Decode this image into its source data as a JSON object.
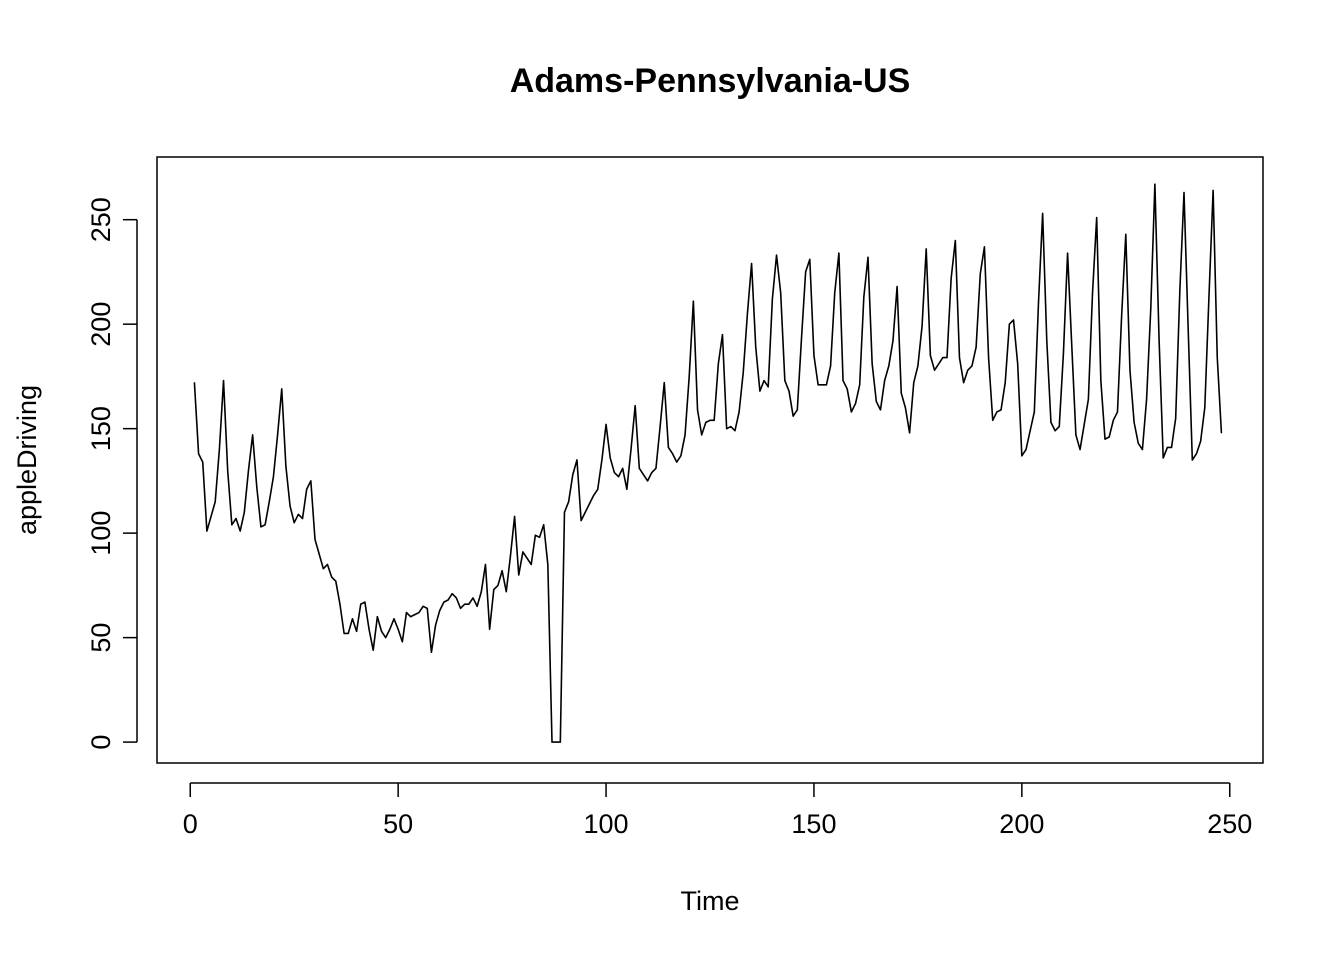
{
  "chart_data": {
    "type": "line",
    "title": "Adams-Pennsylvania-US",
    "xlabel": "Time",
    "ylabel": "appleDriving",
    "xlim": [
      -8,
      258
    ],
    "ylim": [
      -10,
      280
    ],
    "x_ticks": [
      0,
      50,
      100,
      150,
      200,
      250
    ],
    "y_ticks": [
      0,
      50,
      100,
      150,
      200,
      250
    ],
    "x_tick_labels": [
      "0",
      "50",
      "100",
      "150",
      "200",
      "250"
    ],
    "y_tick_labels": [
      "0",
      "50",
      "100",
      "150",
      "200",
      "250"
    ],
    "grid": false,
    "legend": "none",
    "line_color": "#000000",
    "series": [
      {
        "x_start": 1,
        "x_step": 1,
        "values": [
          172,
          138,
          134,
          101,
          108,
          115,
          140,
          173,
          130,
          104,
          107,
          101,
          110,
          130,
          147,
          122,
          103,
          104,
          115,
          127,
          147,
          169,
          132,
          113,
          105,
          109,
          107,
          121,
          125,
          97,
          90,
          83,
          85,
          79,
          77,
          66,
          52,
          52,
          59,
          53,
          66,
          67,
          54,
          44,
          60,
          53,
          50,
          54,
          59,
          54,
          48,
          62,
          60,
          61,
          62,
          65,
          64,
          43,
          56,
          63,
          67,
          68,
          71,
          69,
          64,
          66,
          66,
          69,
          65,
          72,
          85,
          54,
          73,
          75,
          82,
          72,
          89,
          108,
          80,
          91,
          88,
          85,
          99,
          98,
          104,
          85,
          0,
          0,
          0,
          110,
          115,
          128,
          135,
          106,
          110,
          114,
          118,
          121,
          135,
          152,
          136,
          129,
          127,
          131,
          121,
          140,
          161,
          131,
          128,
          125,
          129,
          131,
          151,
          172,
          141,
          138,
          134,
          137,
          147,
          175,
          211,
          159,
          147,
          153,
          154,
          154,
          181,
          195,
          150,
          151,
          149,
          158,
          177,
          205,
          229,
          189,
          168,
          173,
          170,
          212,
          233,
          215,
          173,
          168,
          156,
          159,
          193,
          225,
          231,
          185,
          171,
          171,
          171,
          180,
          215,
          234,
          173,
          169,
          158,
          162,
          171,
          213,
          232,
          181,
          163,
          159,
          173,
          180,
          192,
          218,
          167,
          160,
          148,
          172,
          180,
          199,
          236,
          185,
          178,
          181,
          184,
          184,
          222,
          240,
          184,
          172,
          178,
          180,
          189,
          224,
          237,
          184,
          154,
          158,
          159,
          172,
          200,
          202,
          181,
          137,
          140,
          149,
          158,
          210,
          253,
          192,
          153,
          149,
          151,
          186,
          234,
          190,
          147,
          140,
          152,
          164,
          215,
          251,
          173,
          145,
          146,
          154,
          158,
          204,
          243,
          178,
          153,
          143,
          140,
          164,
          207,
          267,
          193,
          136,
          141,
          141,
          155,
          216,
          263,
          198,
          135,
          138,
          144,
          160,
          213,
          264,
          184,
          148
        ]
      }
    ]
  }
}
